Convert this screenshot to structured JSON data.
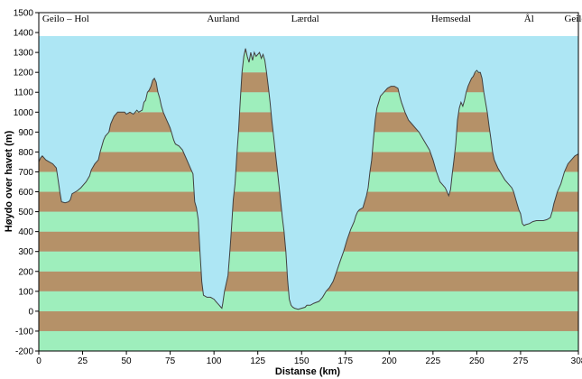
{
  "chart_data": {
    "type": "area",
    "title": "",
    "xlabel": "Distanse  (km)",
    "ylabel": "Høydo over havet (m)",
    "xlim": [
      0,
      308
    ],
    "ylim": [
      -200,
      1500
    ],
    "x_ticks": [
      0,
      25,
      50,
      75,
      100,
      125,
      150,
      175,
      200,
      225,
      250,
      275,
      308
    ],
    "y_ticks": [
      -200,
      -100,
      0,
      100,
      200,
      300,
      400,
      500,
      600,
      700,
      800,
      900,
      1000,
      1100,
      1200,
      1300,
      1400,
      1500
    ],
    "band_height_m": 100,
    "band_colors": {
      "stripe_a": "#b59168",
      "stripe_b": "#9eeebc",
      "sky": "#ade6f4"
    },
    "place_labels": [
      {
        "name": "Geilo – Hol",
        "km": 2
      },
      {
        "name": "Aurland",
        "km": 96
      },
      {
        "name": "Lærdal",
        "km": 144
      },
      {
        "name": "Hemsedal",
        "km": 224
      },
      {
        "name": "Ål",
        "km": 277
      },
      {
        "name": "Geilo",
        "km": 300
      }
    ],
    "series": [
      {
        "points": [
          [
            0,
            750
          ],
          [
            1,
            770
          ],
          [
            2,
            780
          ],
          [
            4,
            760
          ],
          [
            6,
            750
          ],
          [
            8,
            740
          ],
          [
            10,
            720
          ],
          [
            11,
            660
          ],
          [
            12,
            600
          ],
          [
            13,
            550
          ],
          [
            15,
            545
          ],
          [
            17,
            550
          ],
          [
            18,
            560
          ],
          [
            19,
            590
          ],
          [
            21,
            600
          ],
          [
            22,
            605
          ],
          [
            24,
            620
          ],
          [
            27,
            650
          ],
          [
            29,
            680
          ],
          [
            30,
            710
          ],
          [
            32,
            740
          ],
          [
            34,
            760
          ],
          [
            35,
            800
          ],
          [
            37,
            860
          ],
          [
            38,
            880
          ],
          [
            40,
            900
          ],
          [
            41,
            940
          ],
          [
            42,
            960
          ],
          [
            43,
            980
          ],
          [
            45,
            1000
          ],
          [
            47,
            1000
          ],
          [
            49,
            1000
          ],
          [
            50,
            990
          ],
          [
            52,
            1000
          ],
          [
            54,
            990
          ],
          [
            55,
            1000
          ],
          [
            56,
            1010
          ],
          [
            57,
            1000
          ],
          [
            59,
            1010
          ],
          [
            60,
            1050
          ],
          [
            61,
            1060
          ],
          [
            62,
            1100
          ],
          [
            63,
            1110
          ],
          [
            64,
            1130
          ],
          [
            65,
            1160
          ],
          [
            66,
            1170
          ],
          [
            67,
            1150
          ],
          [
            68,
            1100
          ],
          [
            69,
            1070
          ],
          [
            70,
            1030
          ],
          [
            71,
            1000
          ],
          [
            72,
            980
          ],
          [
            73,
            960
          ],
          [
            74,
            940
          ],
          [
            75,
            920
          ],
          [
            76,
            890
          ],
          [
            77,
            860
          ],
          [
            78,
            840
          ],
          [
            80,
            830
          ],
          [
            82,
            810
          ],
          [
            84,
            770
          ],
          [
            86,
            730
          ],
          [
            87,
            710
          ],
          [
            88,
            690
          ],
          [
            88.5,
            620
          ],
          [
            89,
            550
          ],
          [
            90,
            520
          ],
          [
            91,
            460
          ],
          [
            92,
            300
          ],
          [
            93,
            150
          ],
          [
            94,
            80
          ],
          [
            96,
            70
          ],
          [
            98,
            70
          ],
          [
            100,
            60
          ],
          [
            101,
            50
          ],
          [
            102,
            40
          ],
          [
            103,
            30
          ],
          [
            104,
            20
          ],
          [
            104.5,
            15
          ],
          [
            105,
            40
          ],
          [
            106,
            100
          ],
          [
            108,
            180
          ],
          [
            109,
            290
          ],
          [
            110,
            420
          ],
          [
            111,
            560
          ],
          [
            112,
            640
          ],
          [
            113,
            780
          ],
          [
            114,
            900
          ],
          [
            115,
            1060
          ],
          [
            116,
            1200
          ],
          [
            117,
            1280
          ],
          [
            118,
            1320
          ],
          [
            119,
            1280
          ],
          [
            120,
            1250
          ],
          [
            121,
            1300
          ],
          [
            122,
            1260
          ],
          [
            123,
            1300
          ],
          [
            124,
            1280
          ],
          [
            125,
            1290
          ],
          [
            126,
            1300
          ],
          [
            127,
            1270
          ],
          [
            128,
            1290
          ],
          [
            129,
            1260
          ],
          [
            130,
            1200
          ],
          [
            131,
            1130
          ],
          [
            132,
            1050
          ],
          [
            133,
            960
          ],
          [
            134,
            880
          ],
          [
            135,
            800
          ],
          [
            136,
            720
          ],
          [
            137,
            640
          ],
          [
            138,
            560
          ],
          [
            139,
            470
          ],
          [
            140,
            400
          ],
          [
            141,
            300
          ],
          [
            142,
            160
          ],
          [
            143,
            60
          ],
          [
            144,
            30
          ],
          [
            145,
            20
          ],
          [
            146,
            15
          ],
          [
            148,
            10
          ],
          [
            150,
            15
          ],
          [
            152,
            20
          ],
          [
            153,
            30
          ],
          [
            155,
            30
          ],
          [
            157,
            40
          ],
          [
            160,
            50
          ],
          [
            162,
            70
          ],
          [
            164,
            100
          ],
          [
            166,
            120
          ],
          [
            168,
            150
          ],
          [
            170,
            200
          ],
          [
            172,
            250
          ],
          [
            174,
            300
          ],
          [
            176,
            360
          ],
          [
            178,
            410
          ],
          [
            180,
            450
          ],
          [
            181,
            480
          ],
          [
            182,
            500
          ],
          [
            183,
            510
          ],
          [
            185,
            520
          ],
          [
            186,
            550
          ],
          [
            187,
            580
          ],
          [
            188,
            620
          ],
          [
            189,
            700
          ],
          [
            190,
            760
          ],
          [
            191,
            860
          ],
          [
            192,
            960
          ],
          [
            193,
            1020
          ],
          [
            194,
            1050
          ],
          [
            195,
            1080
          ],
          [
            197,
            1100
          ],
          [
            199,
            1120
          ],
          [
            201,
            1130
          ],
          [
            203,
            1130
          ],
          [
            205,
            1120
          ],
          [
            206,
            1080
          ],
          [
            207,
            1050
          ],
          [
            209,
            1000
          ],
          [
            211,
            960
          ],
          [
            213,
            940
          ],
          [
            215,
            920
          ],
          [
            217,
            900
          ],
          [
            219,
            870
          ],
          [
            221,
            840
          ],
          [
            223,
            810
          ],
          [
            225,
            760
          ],
          [
            227,
            700
          ],
          [
            229,
            650
          ],
          [
            230,
            640
          ],
          [
            232,
            620
          ],
          [
            233,
            600
          ],
          [
            234,
            580
          ],
          [
            235,
            610
          ],
          [
            236,
            690
          ],
          [
            237,
            760
          ],
          [
            238,
            840
          ],
          [
            239,
            960
          ],
          [
            240,
            1020
          ],
          [
            241,
            1050
          ],
          [
            242,
            1030
          ],
          [
            243,
            1060
          ],
          [
            244,
            1100
          ],
          [
            245,
            1130
          ],
          [
            246,
            1150
          ],
          [
            247,
            1170
          ],
          [
            248,
            1180
          ],
          [
            249,
            1200
          ],
          [
            250,
            1210
          ],
          [
            251,
            1200
          ],
          [
            252,
            1200
          ],
          [
            253,
            1170
          ],
          [
            254,
            1100
          ],
          [
            255,
            1050
          ],
          [
            256,
            1000
          ],
          [
            257,
            930
          ],
          [
            258,
            870
          ],
          [
            259,
            800
          ],
          [
            260,
            760
          ],
          [
            262,
            720
          ],
          [
            264,
            690
          ],
          [
            266,
            660
          ],
          [
            268,
            640
          ],
          [
            270,
            620
          ],
          [
            271,
            600
          ],
          [
            272,
            570
          ],
          [
            273,
            540
          ],
          [
            274,
            510
          ],
          [
            275,
            490
          ],
          [
            276,
            440
          ],
          [
            277,
            430
          ],
          [
            278,
            435
          ],
          [
            280,
            440
          ],
          [
            282,
            450
          ],
          [
            284,
            455
          ],
          [
            286,
            455
          ],
          [
            288,
            455
          ],
          [
            290,
            460
          ],
          [
            292,
            470
          ],
          [
            293,
            500
          ],
          [
            294,
            540
          ],
          [
            295,
            570
          ],
          [
            296,
            600
          ],
          [
            298,
            640
          ],
          [
            300,
            700
          ],
          [
            302,
            740
          ],
          [
            304,
            760
          ],
          [
            306,
            780
          ],
          [
            308,
            790
          ]
        ]
      }
    ]
  }
}
